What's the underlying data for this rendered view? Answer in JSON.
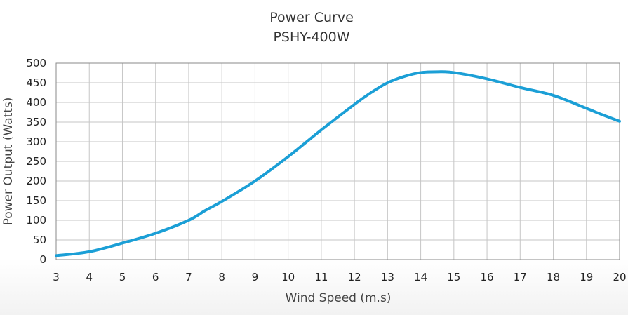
{
  "chart_data": {
    "type": "line",
    "title": "Power Curve",
    "subtitle": "PSHY-400W",
    "xlabel": "Wind Speed (m.s)",
    "ylabel": "Power Output (Watts)",
    "xlim": [
      3,
      20
    ],
    "ylim": [
      0,
      500
    ],
    "x_ticks": [
      "3",
      "4",
      "5",
      "6",
      "7",
      "8",
      "9",
      "10",
      "11",
      "12",
      "13",
      "14",
      "15",
      "16",
      "17",
      "18",
      "19",
      "20"
    ],
    "y_ticks": [
      "0",
      "50",
      "100",
      "150",
      "200",
      "250",
      "300",
      "350",
      "400",
      "450",
      "500"
    ],
    "grid": true,
    "series": [
      {
        "color": "#1b9fd6",
        "x": [
          3,
          4,
          5,
          6,
          7,
          7.5,
          8,
          9,
          10,
          11,
          12,
          12.5,
          13,
          13.5,
          14,
          14.5,
          15,
          16,
          17,
          18,
          19,
          19.5,
          20
        ],
        "y": [
          10,
          20,
          42,
          67,
          100,
          125,
          148,
          200,
          262,
          330,
          395,
          425,
          450,
          466,
          476,
          478,
          476,
          460,
          438,
          418,
          385,
          368,
          352
        ]
      }
    ]
  }
}
